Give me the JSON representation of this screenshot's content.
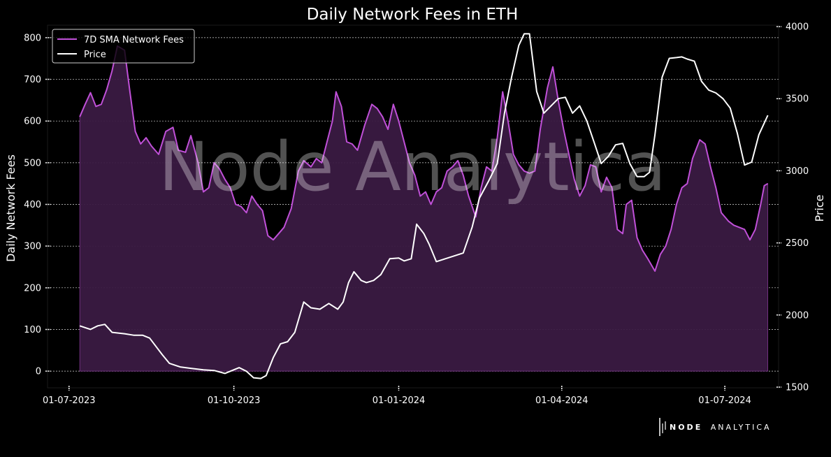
{
  "colors": {
    "fees": "#c050d8",
    "fees_fill": "#3a1a42",
    "price": "#ffffff",
    "background": "#000000",
    "grid": "#ffffff"
  },
  "watermark": "Node Analytica",
  "logo": {
    "brand_bold": "NODE",
    "brand_light": "ANALYTICA"
  },
  "chart_data": {
    "type": "line",
    "title": "Daily Network Fees in ETH",
    "ylabel": "Daily Network Fees",
    "y2label": "Price",
    "ylim": [
      -40,
      830
    ],
    "y2lim": [
      1495,
      4010
    ],
    "xlim": [
      "2023-06-19",
      "2024-07-31"
    ],
    "yticks": [
      0,
      100,
      200,
      300,
      400,
      500,
      600,
      700,
      800
    ],
    "y2ticks": [
      1500,
      2000,
      2500,
      3000,
      3500,
      4000
    ],
    "xticks": [
      "2023-07-01",
      "2023-10-01",
      "2024-01-01",
      "2024-04-01",
      "2024-07-01"
    ],
    "xtick_labels": [
      "01-07-2023",
      "01-10-2023",
      "01-01-2024",
      "01-04-2024",
      "01-07-2024"
    ],
    "grid": "horizontal, dashed",
    "legend": "top-left",
    "series": [
      {
        "name": "7D SMA Network Fees",
        "axis": "left",
        "style": "line with filled area",
        "points": [
          [
            "2023-07-07",
            610
          ],
          [
            "2023-07-10",
            640
          ],
          [
            "2023-07-13",
            668
          ],
          [
            "2023-07-16",
            635
          ],
          [
            "2023-07-19",
            640
          ],
          [
            "2023-07-22",
            675
          ],
          [
            "2023-07-25",
            720
          ],
          [
            "2023-07-28",
            780
          ],
          [
            "2023-08-01",
            770
          ],
          [
            "2023-08-04",
            670
          ],
          [
            "2023-08-07",
            575
          ],
          [
            "2023-08-10",
            545
          ],
          [
            "2023-08-13",
            560
          ],
          [
            "2023-08-16",
            540
          ],
          [
            "2023-08-20",
            520
          ],
          [
            "2023-08-24",
            575
          ],
          [
            "2023-08-28",
            585
          ],
          [
            "2023-08-31",
            530
          ],
          [
            "2023-09-04",
            525
          ],
          [
            "2023-09-07",
            565
          ],
          [
            "2023-09-11",
            500
          ],
          [
            "2023-09-14",
            430
          ],
          [
            "2023-09-17",
            440
          ],
          [
            "2023-09-20",
            500
          ],
          [
            "2023-09-23",
            485
          ],
          [
            "2023-09-26",
            460
          ],
          [
            "2023-09-29",
            440
          ],
          [
            "2023-10-02",
            400
          ],
          [
            "2023-10-05",
            395
          ],
          [
            "2023-10-08",
            380
          ],
          [
            "2023-10-11",
            420
          ],
          [
            "2023-10-14",
            400
          ],
          [
            "2023-10-17",
            385
          ],
          [
            "2023-10-20",
            325
          ],
          [
            "2023-10-23",
            315
          ],
          [
            "2023-10-26",
            330
          ],
          [
            "2023-10-29",
            345
          ],
          [
            "2023-11-02",
            390
          ],
          [
            "2023-11-06",
            480
          ],
          [
            "2023-11-09",
            505
          ],
          [
            "2023-11-13",
            490
          ],
          [
            "2023-11-16",
            510
          ],
          [
            "2023-11-19",
            500
          ],
          [
            "2023-11-22",
            550
          ],
          [
            "2023-11-25",
            600
          ],
          [
            "2023-11-27",
            670
          ],
          [
            "2023-11-30",
            635
          ],
          [
            "2023-12-03",
            550
          ],
          [
            "2023-12-06",
            545
          ],
          [
            "2023-12-09",
            530
          ],
          [
            "2023-12-13",
            590
          ],
          [
            "2023-12-17",
            640
          ],
          [
            "2023-12-20",
            630
          ],
          [
            "2023-12-23",
            610
          ],
          [
            "2023-12-26",
            580
          ],
          [
            "2023-12-29",
            640
          ],
          [
            "2024-01-01",
            600
          ],
          [
            "2024-01-04",
            550
          ],
          [
            "2024-01-07",
            500
          ],
          [
            "2024-01-10",
            470
          ],
          [
            "2024-01-13",
            420
          ],
          [
            "2024-01-16",
            430
          ],
          [
            "2024-01-19",
            400
          ],
          [
            "2024-01-22",
            430
          ],
          [
            "2024-01-25",
            440
          ],
          [
            "2024-01-28",
            480
          ],
          [
            "2024-01-31",
            490
          ],
          [
            "2024-02-03",
            505
          ],
          [
            "2024-02-06",
            470
          ],
          [
            "2024-02-09",
            420
          ],
          [
            "2024-02-13",
            370
          ],
          [
            "2024-02-16",
            440
          ],
          [
            "2024-02-19",
            490
          ],
          [
            "2024-02-22",
            480
          ],
          [
            "2024-02-25",
            560
          ],
          [
            "2024-02-28",
            670
          ],
          [
            "2024-03-02",
            600
          ],
          [
            "2024-03-05",
            520
          ],
          [
            "2024-03-08",
            495
          ],
          [
            "2024-03-11",
            480
          ],
          [
            "2024-03-14",
            475
          ],
          [
            "2024-03-17",
            480
          ],
          [
            "2024-03-20",
            580
          ],
          [
            "2024-03-24",
            680
          ],
          [
            "2024-03-27",
            730
          ],
          [
            "2024-03-30",
            650
          ],
          [
            "2024-04-02",
            580
          ],
          [
            "2024-04-05",
            520
          ],
          [
            "2024-04-08",
            460
          ],
          [
            "2024-04-11",
            420
          ],
          [
            "2024-04-14",
            445
          ],
          [
            "2024-04-17",
            495
          ],
          [
            "2024-04-20",
            490
          ],
          [
            "2024-04-23",
            430
          ],
          [
            "2024-04-26",
            465
          ],
          [
            "2024-04-29",
            440
          ],
          [
            "2024-05-02",
            340
          ],
          [
            "2024-05-05",
            330
          ],
          [
            "2024-05-07",
            400
          ],
          [
            "2024-05-10",
            410
          ],
          [
            "2024-05-13",
            320
          ],
          [
            "2024-05-16",
            290
          ],
          [
            "2024-05-19",
            270
          ],
          [
            "2024-05-23",
            240
          ],
          [
            "2024-05-26",
            280
          ],
          [
            "2024-05-29",
            300
          ],
          [
            "2024-06-01",
            340
          ],
          [
            "2024-06-04",
            400
          ],
          [
            "2024-06-07",
            440
          ],
          [
            "2024-06-10",
            450
          ],
          [
            "2024-06-13",
            510
          ],
          [
            "2024-06-17",
            555
          ],
          [
            "2024-06-20",
            545
          ],
          [
            "2024-06-23",
            490
          ],
          [
            "2024-06-26",
            440
          ],
          [
            "2024-06-29",
            380
          ],
          [
            "2024-07-03",
            360
          ],
          [
            "2024-07-06",
            350
          ],
          [
            "2024-07-09",
            345
          ],
          [
            "2024-07-12",
            340
          ],
          [
            "2024-07-15",
            315
          ],
          [
            "2024-07-18",
            340
          ],
          [
            "2024-07-21",
            400
          ],
          [
            "2024-07-23",
            445
          ],
          [
            "2024-07-25",
            450
          ]
        ]
      },
      {
        "name": "Price",
        "axis": "right",
        "style": "line",
        "points": [
          [
            "2023-07-07",
            1925
          ],
          [
            "2023-07-13",
            1900
          ],
          [
            "2023-07-17",
            1925
          ],
          [
            "2023-07-21",
            1935
          ],
          [
            "2023-07-25",
            1880
          ],
          [
            "2023-08-01",
            1870
          ],
          [
            "2023-08-06",
            1860
          ],
          [
            "2023-08-11",
            1860
          ],
          [
            "2023-08-15",
            1840
          ],
          [
            "2023-08-22",
            1725
          ],
          [
            "2023-08-26",
            1665
          ],
          [
            "2023-09-01",
            1640
          ],
          [
            "2023-09-07",
            1630
          ],
          [
            "2023-09-14",
            1620
          ],
          [
            "2023-09-20",
            1615
          ],
          [
            "2023-09-26",
            1595
          ],
          [
            "2023-10-01",
            1620
          ],
          [
            "2023-10-04",
            1635
          ],
          [
            "2023-10-08",
            1610
          ],
          [
            "2023-10-12",
            1565
          ],
          [
            "2023-10-16",
            1560
          ],
          [
            "2023-10-19",
            1580
          ],
          [
            "2023-10-23",
            1705
          ],
          [
            "2023-10-27",
            1800
          ],
          [
            "2023-10-31",
            1815
          ],
          [
            "2023-11-04",
            1880
          ],
          [
            "2023-11-09",
            2090
          ],
          [
            "2023-11-13",
            2050
          ],
          [
            "2023-11-18",
            2040
          ],
          [
            "2023-11-23",
            2080
          ],
          [
            "2023-11-28",
            2040
          ],
          [
            "2023-12-01",
            2090
          ],
          [
            "2023-12-04",
            2225
          ],
          [
            "2023-12-07",
            2300
          ],
          [
            "2023-12-11",
            2240
          ],
          [
            "2023-12-14",
            2225
          ],
          [
            "2023-12-18",
            2240
          ],
          [
            "2023-12-22",
            2280
          ],
          [
            "2023-12-27",
            2390
          ],
          [
            "2024-01-01",
            2395
          ],
          [
            "2024-01-04",
            2375
          ],
          [
            "2024-01-08",
            2390
          ],
          [
            "2024-01-11",
            2630
          ],
          [
            "2024-01-15",
            2565
          ],
          [
            "2024-01-18",
            2490
          ],
          [
            "2024-01-22",
            2370
          ],
          [
            "2024-01-27",
            2390
          ],
          [
            "2024-02-01",
            2410
          ],
          [
            "2024-02-06",
            2430
          ],
          [
            "2024-02-11",
            2610
          ],
          [
            "2024-02-15",
            2810
          ],
          [
            "2024-02-20",
            2925
          ],
          [
            "2024-02-25",
            3050
          ],
          [
            "2024-02-29",
            3400
          ],
          [
            "2024-03-04",
            3650
          ],
          [
            "2024-03-08",
            3870
          ],
          [
            "2024-03-11",
            3950
          ],
          [
            "2024-03-14",
            3950
          ],
          [
            "2024-03-18",
            3550
          ],
          [
            "2024-03-22",
            3400
          ],
          [
            "2024-03-26",
            3450
          ],
          [
            "2024-03-30",
            3500
          ],
          [
            "2024-04-03",
            3510
          ],
          [
            "2024-04-07",
            3400
          ],
          [
            "2024-04-11",
            3450
          ],
          [
            "2024-04-15",
            3345
          ],
          [
            "2024-04-19",
            3200
          ],
          [
            "2024-04-23",
            3050
          ],
          [
            "2024-04-27",
            3100
          ],
          [
            "2024-05-01",
            3180
          ],
          [
            "2024-05-05",
            3190
          ],
          [
            "2024-05-09",
            3050
          ],
          [
            "2024-05-13",
            2960
          ],
          [
            "2024-05-17",
            2960
          ],
          [
            "2024-05-20",
            2990
          ],
          [
            "2024-05-23",
            3250
          ],
          [
            "2024-05-27",
            3650
          ],
          [
            "2024-05-31",
            3780
          ],
          [
            "2024-06-04",
            3785
          ],
          [
            "2024-06-07",
            3790
          ],
          [
            "2024-06-10",
            3775
          ],
          [
            "2024-06-14",
            3760
          ],
          [
            "2024-06-18",
            3620
          ],
          [
            "2024-06-22",
            3560
          ],
          [
            "2024-06-26",
            3540
          ],
          [
            "2024-06-30",
            3500
          ],
          [
            "2024-07-04",
            3435
          ],
          [
            "2024-07-08",
            3260
          ],
          [
            "2024-07-12",
            3040
          ],
          [
            "2024-07-16",
            3060
          ],
          [
            "2024-07-20",
            3250
          ],
          [
            "2024-07-25",
            3385
          ]
        ]
      }
    ]
  }
}
